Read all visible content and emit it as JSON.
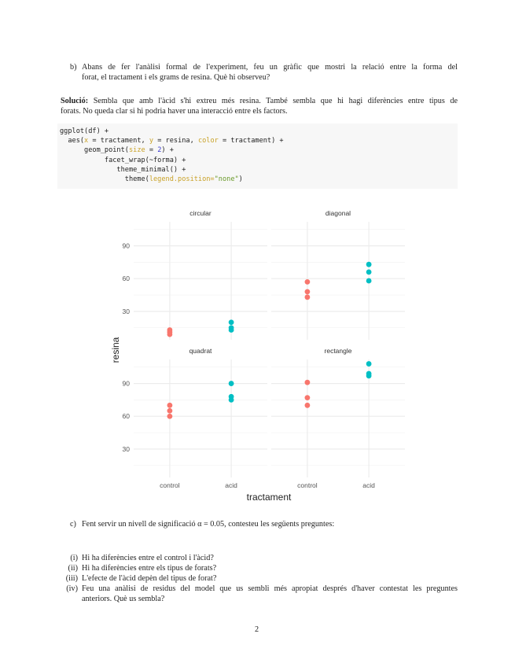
{
  "question_b": {
    "marker": "b)",
    "line1": "Abans de fer l'anàlisi formal de l'experiment, feu un gràfic que mostri la relació entre la forma del",
    "line2": "forat, el tractament i els grams de resina. Què hi observeu?"
  },
  "solution": {
    "label": "Solució:",
    "line1": "Sembla que amb l'àcid s'hi extreu més resina. També sembla que hi hagi diferències entre tipus de",
    "line2": "forats. No queda clar si hi podria haver una interacció entre els factors."
  },
  "code": {
    "l1": "ggplot(df) +",
    "l2a": "  aes(",
    "l2b": "x",
    "l2c": " = tractament, ",
    "l2d": "y",
    "l2e": " = resina, ",
    "l2f": "color",
    "l2g": " = tractament) +",
    "l3a": "      geom_point(",
    "l3b": "size",
    "l3c": " = ",
    "l3d": "2",
    "l3e": ") +",
    "l4": "           facet_wrap(~forma) +",
    "l5": "              theme_minimal() +",
    "l6a": "                theme(",
    "l6b": "legend.position=",
    "l6c": "\"none\"",
    "l6d": ")"
  },
  "chart_data": {
    "type": "scatter",
    "xlabel": "tractament",
    "ylabel": "resina",
    "categories": [
      "control",
      "acid"
    ],
    "yticks": [
      30,
      60,
      90
    ],
    "ylim": [
      4,
      112
    ],
    "grid": true,
    "legend": "none",
    "colors": {
      "control": "#F8766D",
      "acid": "#00BFC4"
    },
    "facets": [
      {
        "name": "circular",
        "control": [
          13,
          11,
          9
        ],
        "acid": [
          20,
          15,
          13
        ]
      },
      {
        "name": "diagonal",
        "control": [
          57,
          48,
          43
        ],
        "acid": [
          73,
          66,
          58
        ]
      },
      {
        "name": "quadrat",
        "control": [
          70,
          65,
          60
        ],
        "acid": [
          90,
          78,
          75
        ]
      },
      {
        "name": "rectangle",
        "control": [
          91,
          77,
          70
        ],
        "acid": [
          108,
          99,
          97
        ]
      }
    ]
  },
  "question_c": {
    "marker": "c)",
    "text": "Fent servir un nivell de significació α = 0.05, contesteu les següents preguntes:"
  },
  "subquestions": [
    {
      "marker": "(i)",
      "text": "Hi ha diferències entre el control i l'àcid?"
    },
    {
      "marker": "(ii)",
      "text": "Hi ha diferències entre els tipus de forats?"
    },
    {
      "marker": "(iii)",
      "text": "L'efecte de l'àcid depèn del tipus de forat?"
    },
    {
      "marker": "(iv)",
      "text": "Feu una anàlisi de residus del model que us sembli més apropiat després d'haver contestat les preguntes",
      "text2": "anteriors. Què us sembla?"
    }
  ],
  "page_number": "2"
}
